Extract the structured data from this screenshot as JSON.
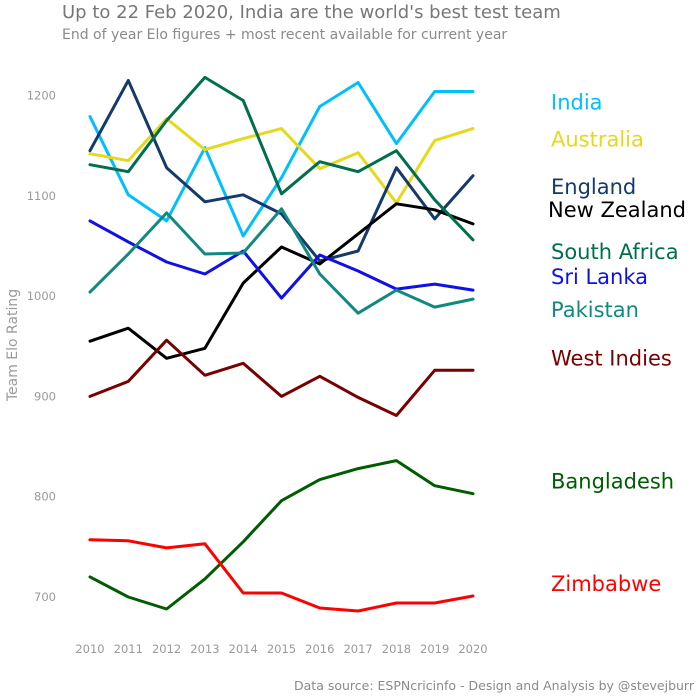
{
  "title": "Up to 22 Feb 2020, India are the world's best test team",
  "subtitle": "End of year Elo figures + most recent available for current year",
  "caption": "Data source: ESPNcricinfo - Design and Analysis by @stevejburr",
  "chart_data": {
    "type": "line",
    "x": [
      2010,
      2011,
      2012,
      2013,
      2014,
      2015,
      2016,
      2017,
      2018,
      2019,
      2020
    ],
    "xlabel": "",
    "ylabel": "Team Elo Rating",
    "ylim": [
      640,
      1250
    ],
    "yticks": [
      700,
      800,
      900,
      1000,
      1100,
      1200
    ],
    "grid": false,
    "legend": "direct labels at right end of lines",
    "series": [
      {
        "name": "India",
        "color": "#00bfff",
        "label_y": 1193,
        "values": [
          1179,
          1101,
          1075,
          1148,
          1060,
          1118,
          1189,
          1213,
          1152,
          1204,
          1204
        ]
      },
      {
        "name": "Australia",
        "color": "#e6d81a",
        "label_y": 1156,
        "values": [
          1142,
          1135,
          1177,
          1146,
          1157,
          1167,
          1127,
          1143,
          1093,
          1155,
          1167
        ]
      },
      {
        "name": "England",
        "color": "#143a6b",
        "label_y": 1109,
        "values": [
          1145,
          1215,
          1128,
          1094,
          1101,
          1082,
          1035,
          1045,
          1128,
          1077,
          1120
        ]
      },
      {
        "name": "New Zealand",
        "color": "#000000",
        "label_y": 1086,
        "values": [
          955,
          968,
          938,
          948,
          1013,
          1049,
          1032,
          1062,
          1092,
          1086,
          1072
        ]
      },
      {
        "name": "South Africa",
        "color": "#006f4e",
        "label_y": 1044,
        "values": [
          1131,
          1124,
          1175,
          1218,
          1195,
          1102,
          1134,
          1124,
          1145,
          1096,
          1056
        ]
      },
      {
        "name": "Sri Lanka",
        "color": "#1010e8",
        "label_y": 1019,
        "values": [
          1075,
          1054,
          1034,
          1022,
          1045,
          998,
          1041,
          1025,
          1007,
          1012,
          1006
        ]
      },
      {
        "name": "Pakistan",
        "color": "#108a80",
        "label_y": 986,
        "values": [
          1004,
          1042,
          1083,
          1042,
          1043,
          1087,
          1022,
          983,
          1006,
          989,
          997
        ]
      },
      {
        "name": "West Indies",
        "color": "#7a0000",
        "label_y": 938,
        "values": [
          900,
          915,
          956,
          921,
          933,
          900,
          920,
          899,
          881,
          926,
          926
        ]
      },
      {
        "name": "Bangladesh",
        "color": "#005c00",
        "label_y": 815,
        "values": [
          720,
          700,
          688,
          718,
          755,
          796,
          817,
          828,
          836,
          811,
          803
        ]
      },
      {
        "name": "Zimbabwe",
        "color": "#ff0000",
        "label_y": 713,
        "values": [
          757,
          756,
          749,
          753,
          704,
          704,
          689,
          686,
          694,
          694,
          701
        ]
      }
    ]
  }
}
